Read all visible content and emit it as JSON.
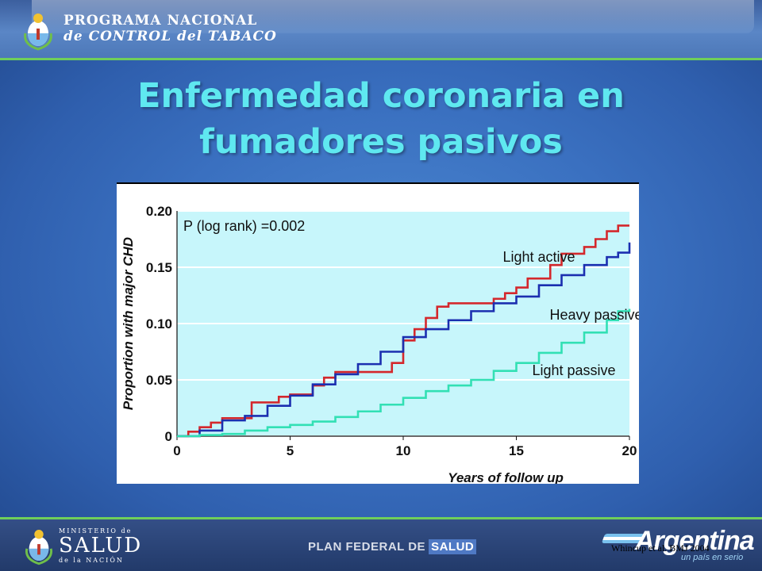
{
  "header": {
    "org_line1": "PROGRAMA NACIONAL",
    "org_line2": "de CONTROL del TABACO"
  },
  "title": {
    "line1": "Enfermedad coronaria en",
    "line2": "fumadores pasivos"
  },
  "chart_data": {
    "type": "line",
    "ylabel": "Proportion with major CHD",
    "xlabel": "Years of follow up",
    "annotation": "P (log rank) =0.002",
    "xlim": [
      0,
      20
    ],
    "ylim": [
      0,
      0.2
    ],
    "x_ticks": [
      "0",
      "5",
      "10",
      "15",
      "20"
    ],
    "y_ticks": [
      "0",
      "0.05",
      "0.10",
      "0.15",
      "0.20"
    ],
    "grid": "horizontal",
    "colors": {
      "plot_bg": "#c7f6fb",
      "light_active": "#d4282c",
      "heavy_passive": "#1b2fb0",
      "light_passive": "#32e0b4"
    },
    "series": [
      {
        "name": "Light active",
        "color_key": "light_active",
        "x": [
          0,
          0.5,
          1,
          1.5,
          2,
          3,
          3.3,
          4,
          4.5,
          5,
          6,
          6.5,
          7,
          7.5,
          8,
          9,
          9.5,
          10,
          10.5,
          11,
          11.5,
          12,
          13,
          14,
          14.5,
          15,
          15.5,
          16,
          16.5,
          17,
          17.5,
          18,
          18.5,
          19,
          19.5,
          20
        ],
        "y": [
          0,
          0.004,
          0.008,
          0.012,
          0.016,
          0.016,
          0.03,
          0.03,
          0.035,
          0.037,
          0.045,
          0.052,
          0.057,
          0.057,
          0.057,
          0.057,
          0.065,
          0.085,
          0.095,
          0.105,
          0.115,
          0.118,
          0.118,
          0.122,
          0.127,
          0.132,
          0.14,
          0.14,
          0.152,
          0.162,
          0.162,
          0.168,
          0.175,
          0.182,
          0.187,
          0.187
        ]
      },
      {
        "name": "Heavy passive",
        "color_key": "heavy_passive",
        "x": [
          0,
          1,
          2,
          3,
          4,
          5,
          6,
          7,
          8,
          9,
          10,
          11,
          12,
          13,
          14,
          15,
          16,
          17,
          18,
          19,
          19.5,
          20
        ],
        "y": [
          0,
          0.005,
          0.014,
          0.018,
          0.027,
          0.036,
          0.046,
          0.055,
          0.064,
          0.075,
          0.088,
          0.095,
          0.103,
          0.111,
          0.118,
          0.124,
          0.134,
          0.143,
          0.152,
          0.159,
          0.163,
          0.172
        ]
      },
      {
        "name": "Light passive",
        "color_key": "light_passive",
        "x": [
          0,
          1,
          2,
          3,
          4,
          5,
          6,
          7,
          8,
          9,
          10,
          11,
          12,
          13,
          14,
          15,
          16,
          17,
          18,
          19,
          19.5,
          20
        ],
        "y": [
          0,
          0.001,
          0.002,
          0.005,
          0.008,
          0.01,
          0.013,
          0.017,
          0.022,
          0.028,
          0.034,
          0.04,
          0.045,
          0.05,
          0.058,
          0.065,
          0.074,
          0.083,
          0.092,
          0.103,
          0.111,
          0.113
        ]
      }
    ]
  },
  "footer": {
    "ministerio_line1": "MINISTERIO de",
    "ministerio_line2": "SALUD",
    "ministerio_line3": "de la NACIÓN",
    "plan": "PLAN FEDERAL DE",
    "plan_highlight": "SALUD",
    "brand": "Argentina",
    "brand_motto": "un país en serio",
    "citation": "Whincup et al. BMJ 2004"
  }
}
